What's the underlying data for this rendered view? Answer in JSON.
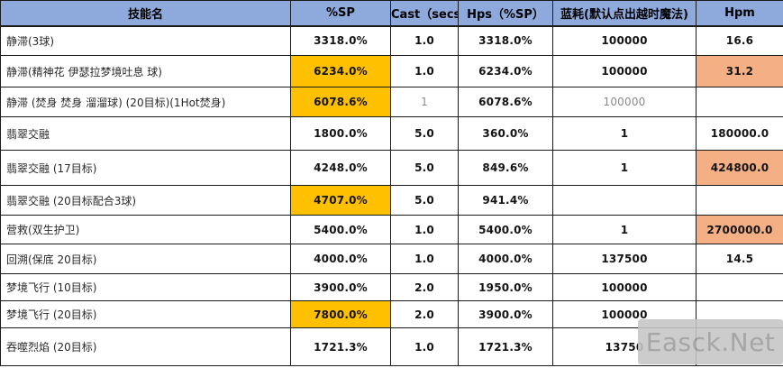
{
  "table": {
    "headers": [
      "技能名",
      "%SP",
      "Cast（secs）",
      "Hps（%SP）",
      "蓝耗(默认点出越时魔法)",
      "Hpm"
    ],
    "rows": [
      {
        "name": "静滞(3球)",
        "sp": "3318.0%",
        "cast": "1.0",
        "hps": "3318.0%",
        "mana": "100000",
        "hpm": "16.6"
      },
      {
        "name": "静滞(精神花 伊瑟拉梦境吐息 球)",
        "sp": "6234.0%",
        "cast": "1.0",
        "hps": "6234.0%",
        "mana": "100000",
        "hpm": "31.2",
        "sp_highlight": true,
        "hpm_highlight": true
      },
      {
        "name": "静滞 (焚身 焚身 溜溜球) (20目标)(1Hot焚身)",
        "sp": "6078.6%",
        "cast": "1",
        "hps": "6078.6%",
        "mana": "100000",
        "hpm": "",
        "sp_highlight": true,
        "muted": [
          "cast",
          "mana"
        ]
      },
      {
        "name": "翡翠交融",
        "sp": "1800.0%",
        "cast": "5.0",
        "hps": "360.0%",
        "mana": "1",
        "hpm": "180000.0"
      },
      {
        "name": "翡翠交融 (17目标)",
        "sp": "4248.0%",
        "cast": "5.0",
        "hps": "849.6%",
        "mana": "1",
        "hpm": "424800.0",
        "hpm_highlight": true
      },
      {
        "name": "翡翠交融 (20目标配合3球)",
        "sp": "4707.0%",
        "cast": "5.0",
        "hps": "941.4%",
        "mana": "",
        "hpm": "",
        "sp_highlight": true
      },
      {
        "name": "营救(双生护卫)",
        "sp": "5400.0%",
        "cast": "1.0",
        "hps": "5400.0%",
        "mana": "1",
        "hpm": "2700000.0",
        "hpm_highlight": true
      },
      {
        "name": "回溯(保底 20目标)",
        "sp": "4000.0%",
        "cast": "1.0",
        "hps": "4000.0%",
        "mana": "137500",
        "hpm": "14.5"
      },
      {
        "name": "梦境飞行 (10目标)",
        "sp": "3900.0%",
        "cast": "2.0",
        "hps": "1950.0%",
        "mana": "100000",
        "hpm": ""
      },
      {
        "name": "梦境飞行 (20目标)",
        "sp": "7800.0%",
        "cast": "2.0",
        "hps": "3900.0%",
        "mana": "100000",
        "hpm": "",
        "sp_highlight": true
      },
      {
        "name": "吞噬烈焰 (20目标)",
        "sp": "1721.3%",
        "cast": "1.0",
        "hps": "1721.3%",
        "mana": "13750",
        "hpm": ""
      }
    ]
  },
  "watermark": {
    "text": "Easck.Net"
  },
  "colors": {
    "header_bg": "#8ea9db",
    "highlight_yellow": "#ffc000",
    "highlight_orange": "#f4b084",
    "muted_text": "#8b8b8b",
    "border": "#1b1b1b",
    "watermark_bg": "#c6c6c6",
    "watermark_text": "#9a9a9a"
  }
}
